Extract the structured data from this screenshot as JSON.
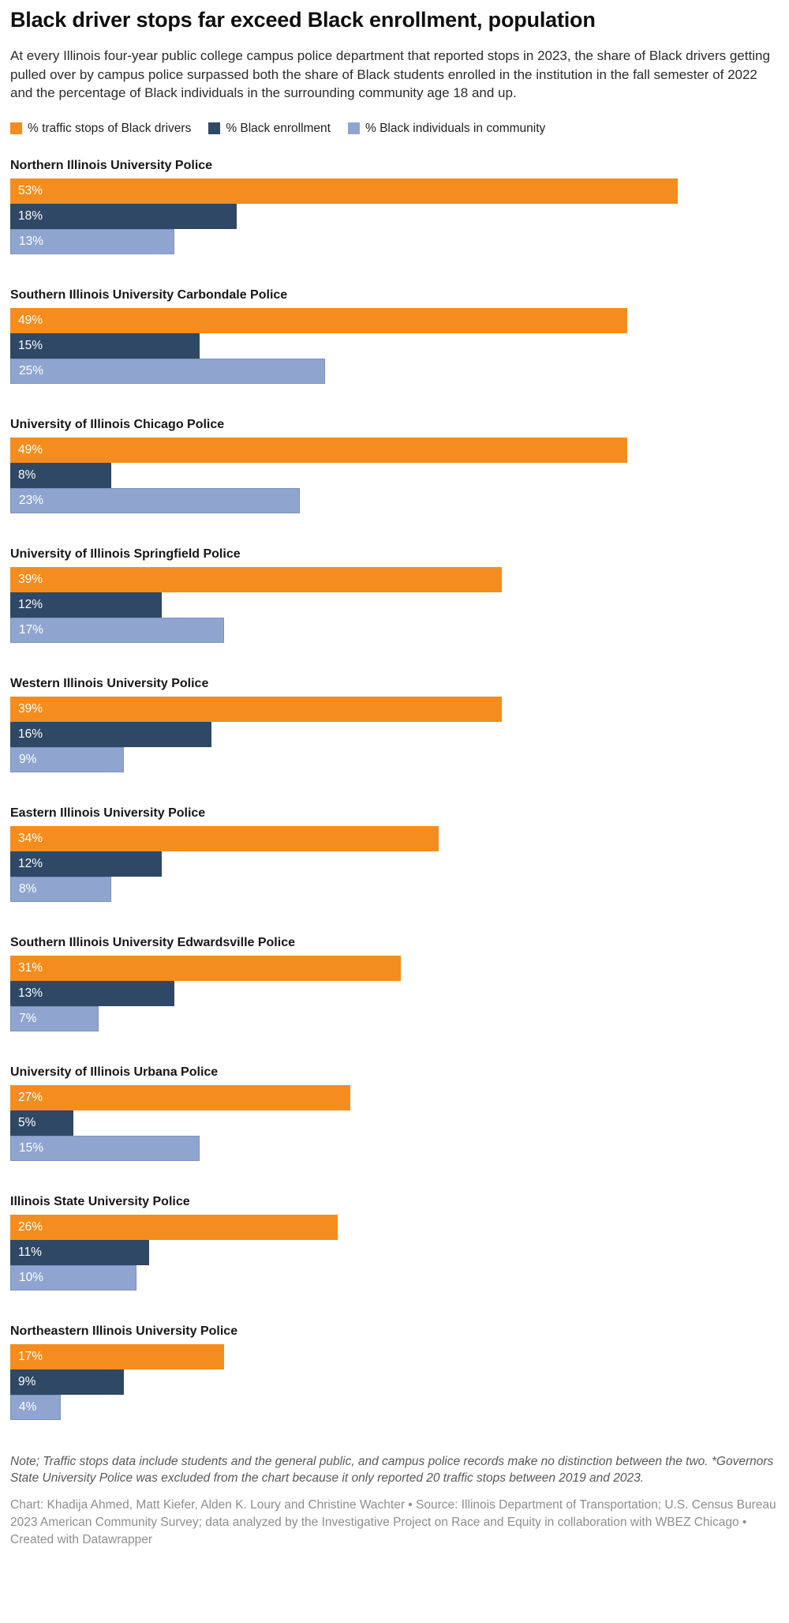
{
  "header": {
    "title": "Black driver stops far exceed Black enrollment, population",
    "description": "At every Illinois four-year public college campus police department that reported stops in 2023, the share of Black drivers getting pulled over by campus police surpassed both the share of Black students enrolled in the institution in the fall semester of 2022 and the percentage of Black individuals in the surrounding community age 18 and up."
  },
  "legend": [
    {
      "label": "% traffic stops of Black drivers",
      "color": "#F48D1D"
    },
    {
      "label": "% Black enrollment",
      "color": "#2E4866"
    },
    {
      "label": "% Black individuals in community",
      "color": "#8FA5CF"
    }
  ],
  "chart_data": {
    "type": "bar",
    "orientation": "horizontal",
    "unit": "%",
    "xmax": 61,
    "grid": false,
    "legend_position": "top",
    "series_names": [
      "% traffic stops of Black drivers",
      "% Black enrollment",
      "% Black individuals in community"
    ],
    "groups": [
      {
        "label": "Northern Illinois University Police",
        "values": [
          53,
          18,
          13
        ]
      },
      {
        "label": "Southern Illinois University Carbondale Police",
        "values": [
          49,
          15,
          25
        ]
      },
      {
        "label": "University of Illinois Chicago Police",
        "values": [
          49,
          8,
          23
        ]
      },
      {
        "label": "University of Illinois Springfield Police",
        "values": [
          39,
          12,
          17
        ]
      },
      {
        "label": "Western Illinois University Police",
        "values": [
          39,
          16,
          9
        ]
      },
      {
        "label": "Eastern Illinois University Police",
        "values": [
          34,
          12,
          8
        ]
      },
      {
        "label": "Southern Illinois University Edwardsville Police",
        "values": [
          31,
          13,
          7
        ]
      },
      {
        "label": "University of Illinois Urbana Police",
        "values": [
          27,
          5,
          15
        ]
      },
      {
        "label": "Illinois State University Police",
        "values": [
          26,
          11,
          10
        ]
      },
      {
        "label": "Northeastern Illinois University Police",
        "values": [
          17,
          9,
          4
        ]
      }
    ]
  },
  "footer": {
    "note": "Note; Traffic stops data include students and the general public, and campus police records make no distinction between the two. *Governors State University Police was excluded from the chart because it only reported 20 traffic stops between 2019 and 2023.",
    "credits": "Chart: Khadija Ahmed, Matt Kiefer, Alden K. Loury and Christine Wachter • Source: Illinois Department of Transportation; U.S. Census Bureau 2023 American Community Survey; data analyzed by the Investigative Project on Race and Equity in collaboration with WBEZ Chicago • Created with Datawrapper"
  }
}
